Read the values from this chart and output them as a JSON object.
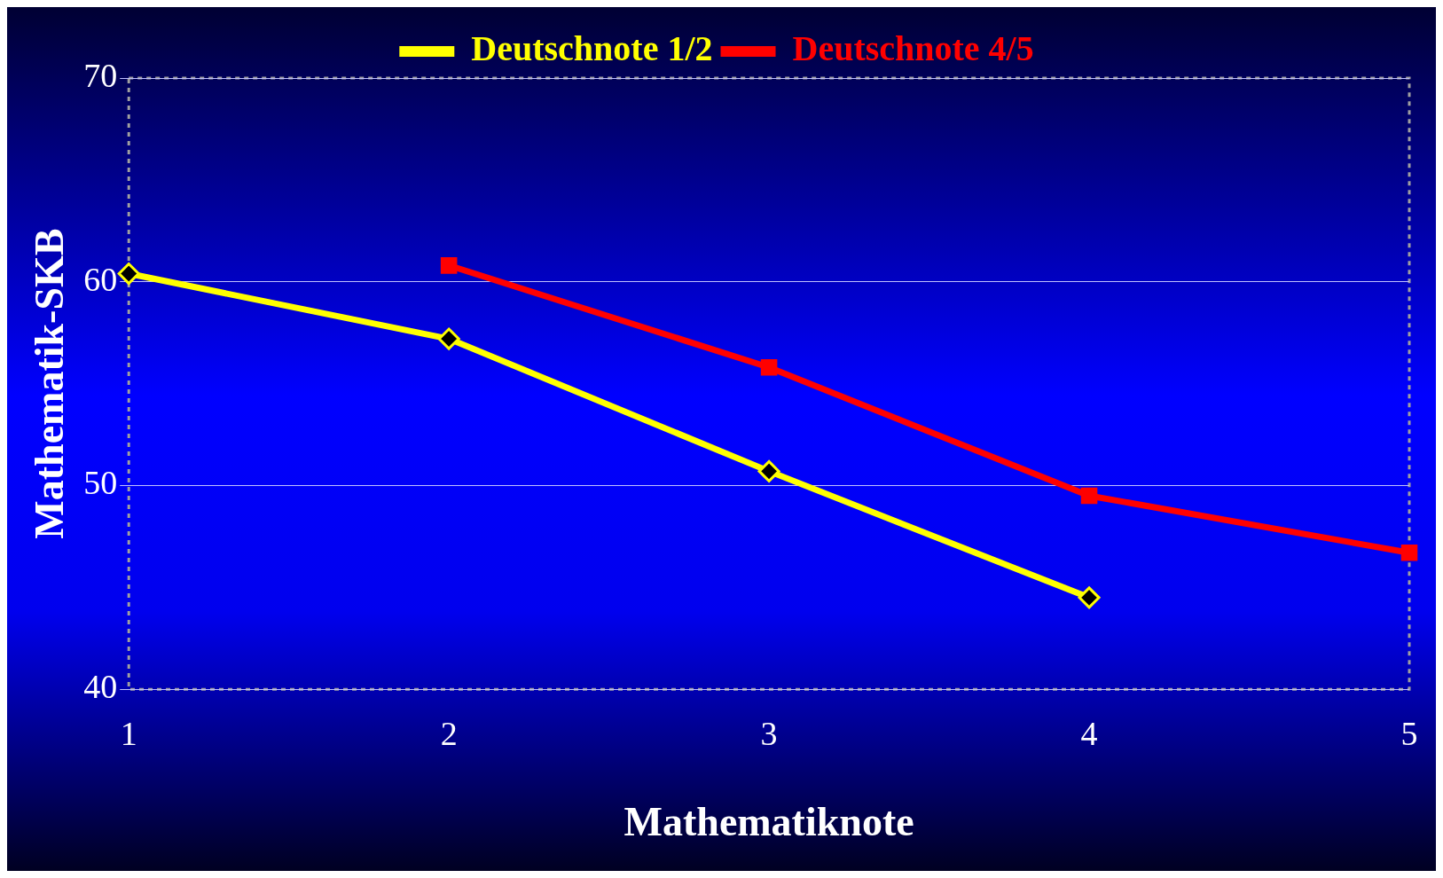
{
  "chart_data": {
    "type": "line",
    "xlabel": "Mathematiknote",
    "ylabel": "Mathematik-SKB",
    "categories": [
      "1",
      "2",
      "3",
      "4",
      "5"
    ],
    "series": [
      {
        "name": "Deutschnote 1/2",
        "color": "#ffff00",
        "marker": "diamond",
        "values": [
          60.4,
          57.2,
          50.7,
          44.5,
          null
        ]
      },
      {
        "name": "Deutschnote 4/5",
        "color": "#ff0000",
        "marker": "square",
        "values": [
          null,
          60.8,
          55.8,
          49.5,
          46.7
        ]
      }
    ],
    "ylim": [
      40,
      70
    ],
    "yticks": [
      40,
      50,
      60,
      70
    ],
    "grid": "y",
    "legend": "top",
    "line_style": "solid"
  }
}
